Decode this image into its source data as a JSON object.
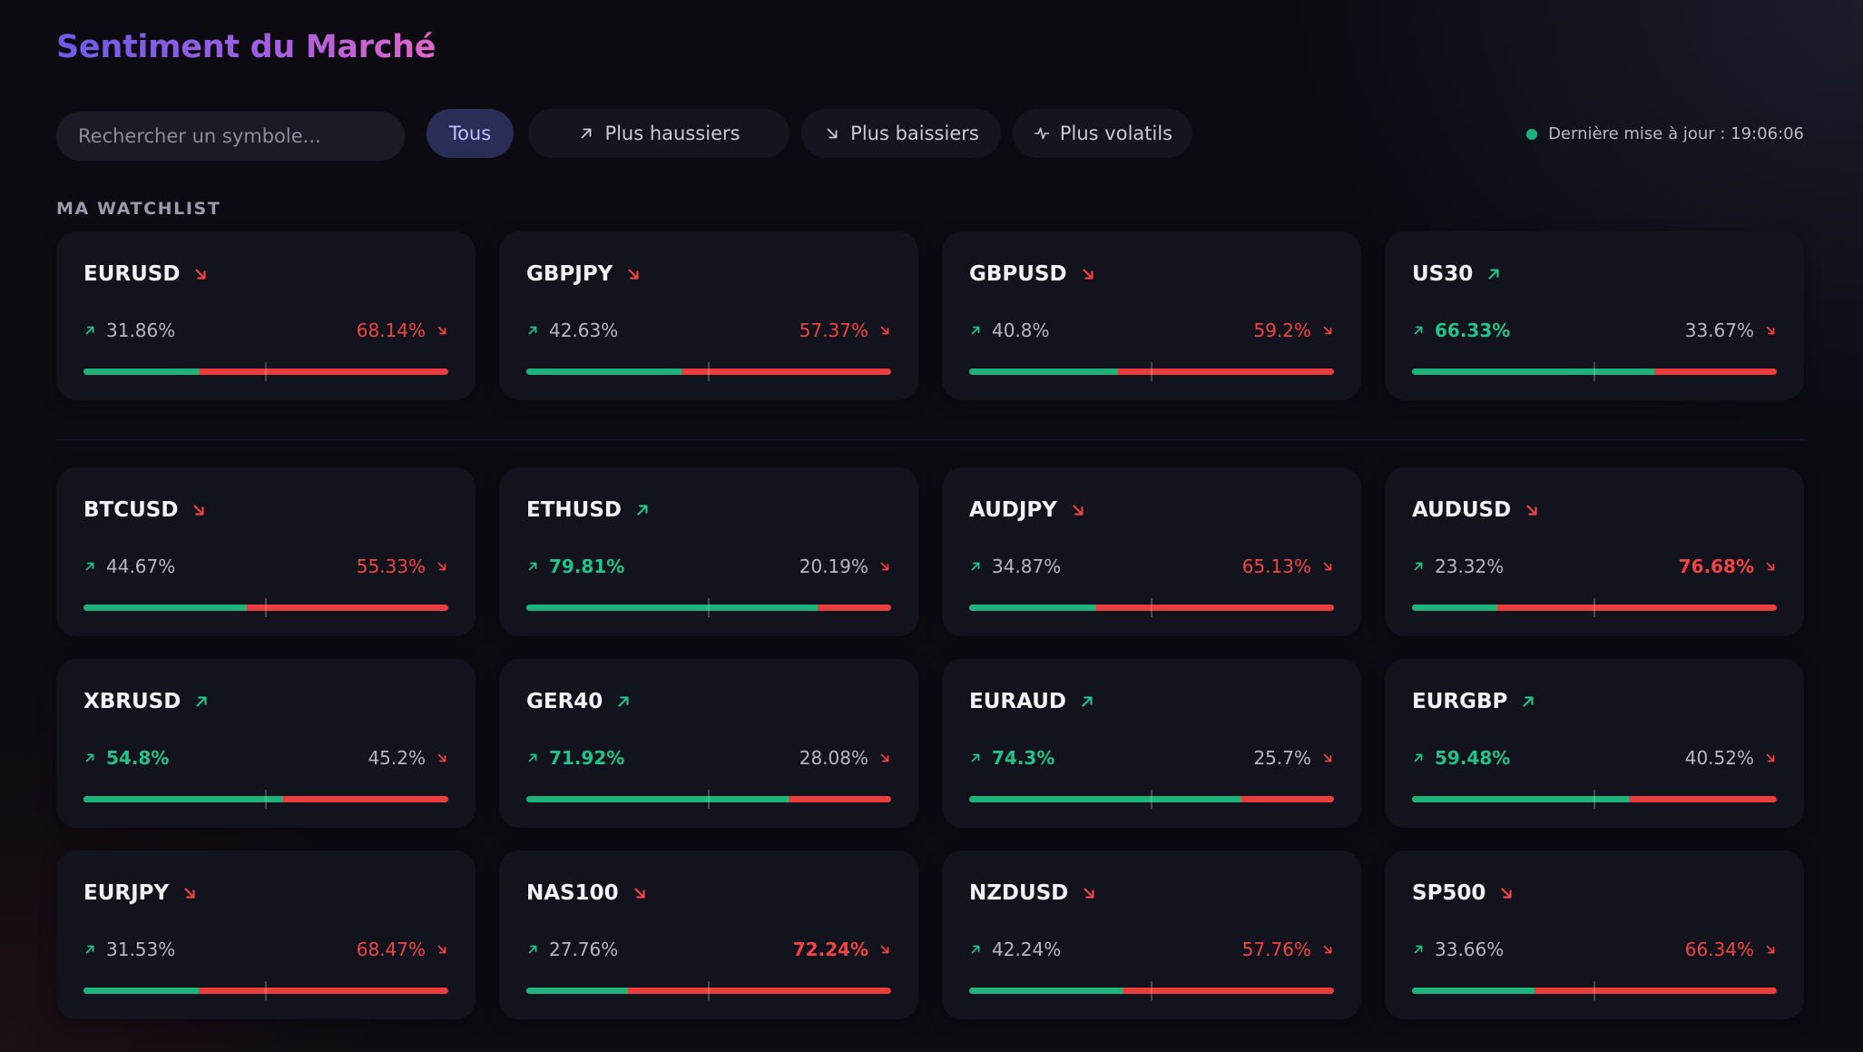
{
  "page": {
    "title": "Sentiment du Marché",
    "section_label": "MA WATCHLIST"
  },
  "search": {
    "placeholder": "Rechercher un symbole..."
  },
  "filters": [
    {
      "label": "Tous",
      "icon": "",
      "active": true
    },
    {
      "label": "Plus haussiers",
      "icon": "arrow-up-right-icon",
      "active": false
    },
    {
      "label": "Plus baissiers",
      "icon": "arrow-down-right-icon",
      "active": false
    },
    {
      "label": "Plus volatils",
      "icon": "activity-icon",
      "active": false
    }
  ],
  "status": {
    "update_text": "Dernière mise à jour : 19:06:06"
  },
  "colors": {
    "bullish": "#1fb37c",
    "bearish": "#ea3d3d",
    "accent": "#b9c1ff"
  },
  "watchlist": [
    {
      "symbol": "EURUSD",
      "trend": "down",
      "bull": "31.86%",
      "bear": "68.14%",
      "bull_value": 31.86
    },
    {
      "symbol": "GBPJPY",
      "trend": "down",
      "bull": "42.63%",
      "bear": "57.37%",
      "bull_value": 42.63
    },
    {
      "symbol": "GBPUSD",
      "trend": "down",
      "bull": "40.8%",
      "bear": "59.2%",
      "bull_value": 40.8
    },
    {
      "symbol": "US30",
      "trend": "up",
      "bull": "66.33%",
      "bear": "33.67%",
      "bull_value": 66.33
    }
  ],
  "markets": [
    {
      "symbol": "BTCUSD",
      "trend": "down",
      "bull": "44.67%",
      "bear": "55.33%",
      "bull_value": 44.67
    },
    {
      "symbol": "ETHUSD",
      "trend": "up",
      "bull": "79.81%",
      "bear": "20.19%",
      "bull_value": 79.81
    },
    {
      "symbol": "AUDJPY",
      "trend": "down",
      "bull": "34.87%",
      "bear": "65.13%",
      "bull_value": 34.87
    },
    {
      "symbol": "AUDUSD",
      "trend": "down",
      "bull": "23.32%",
      "bear": "76.68%",
      "bull_value": 23.32
    },
    {
      "symbol": "XBRUSD",
      "trend": "up",
      "bull": "54.8%",
      "bear": "45.2%",
      "bull_value": 54.8
    },
    {
      "symbol": "GER40",
      "trend": "up",
      "bull": "71.92%",
      "bear": "28.08%",
      "bull_value": 71.92
    },
    {
      "symbol": "EURAUD",
      "trend": "up",
      "bull": "74.3%",
      "bear": "25.7%",
      "bull_value": 74.3
    },
    {
      "symbol": "EURGBP",
      "trend": "up",
      "bull": "59.48%",
      "bear": "40.52%",
      "bull_value": 59.48
    },
    {
      "symbol": "EURJPY",
      "trend": "down",
      "bull": "31.53%",
      "bear": "68.47%",
      "bull_value": 31.53
    },
    {
      "symbol": "NAS100",
      "trend": "down",
      "bull": "27.76%",
      "bear": "72.24%",
      "bull_value": 27.76
    },
    {
      "symbol": "NZDUSD",
      "trend": "down",
      "bull": "42.24%",
      "bear": "57.76%",
      "bull_value": 42.24
    },
    {
      "symbol": "SP500",
      "trend": "down",
      "bull": "33.66%",
      "bear": "66.34%",
      "bull_value": 33.66
    }
  ]
}
